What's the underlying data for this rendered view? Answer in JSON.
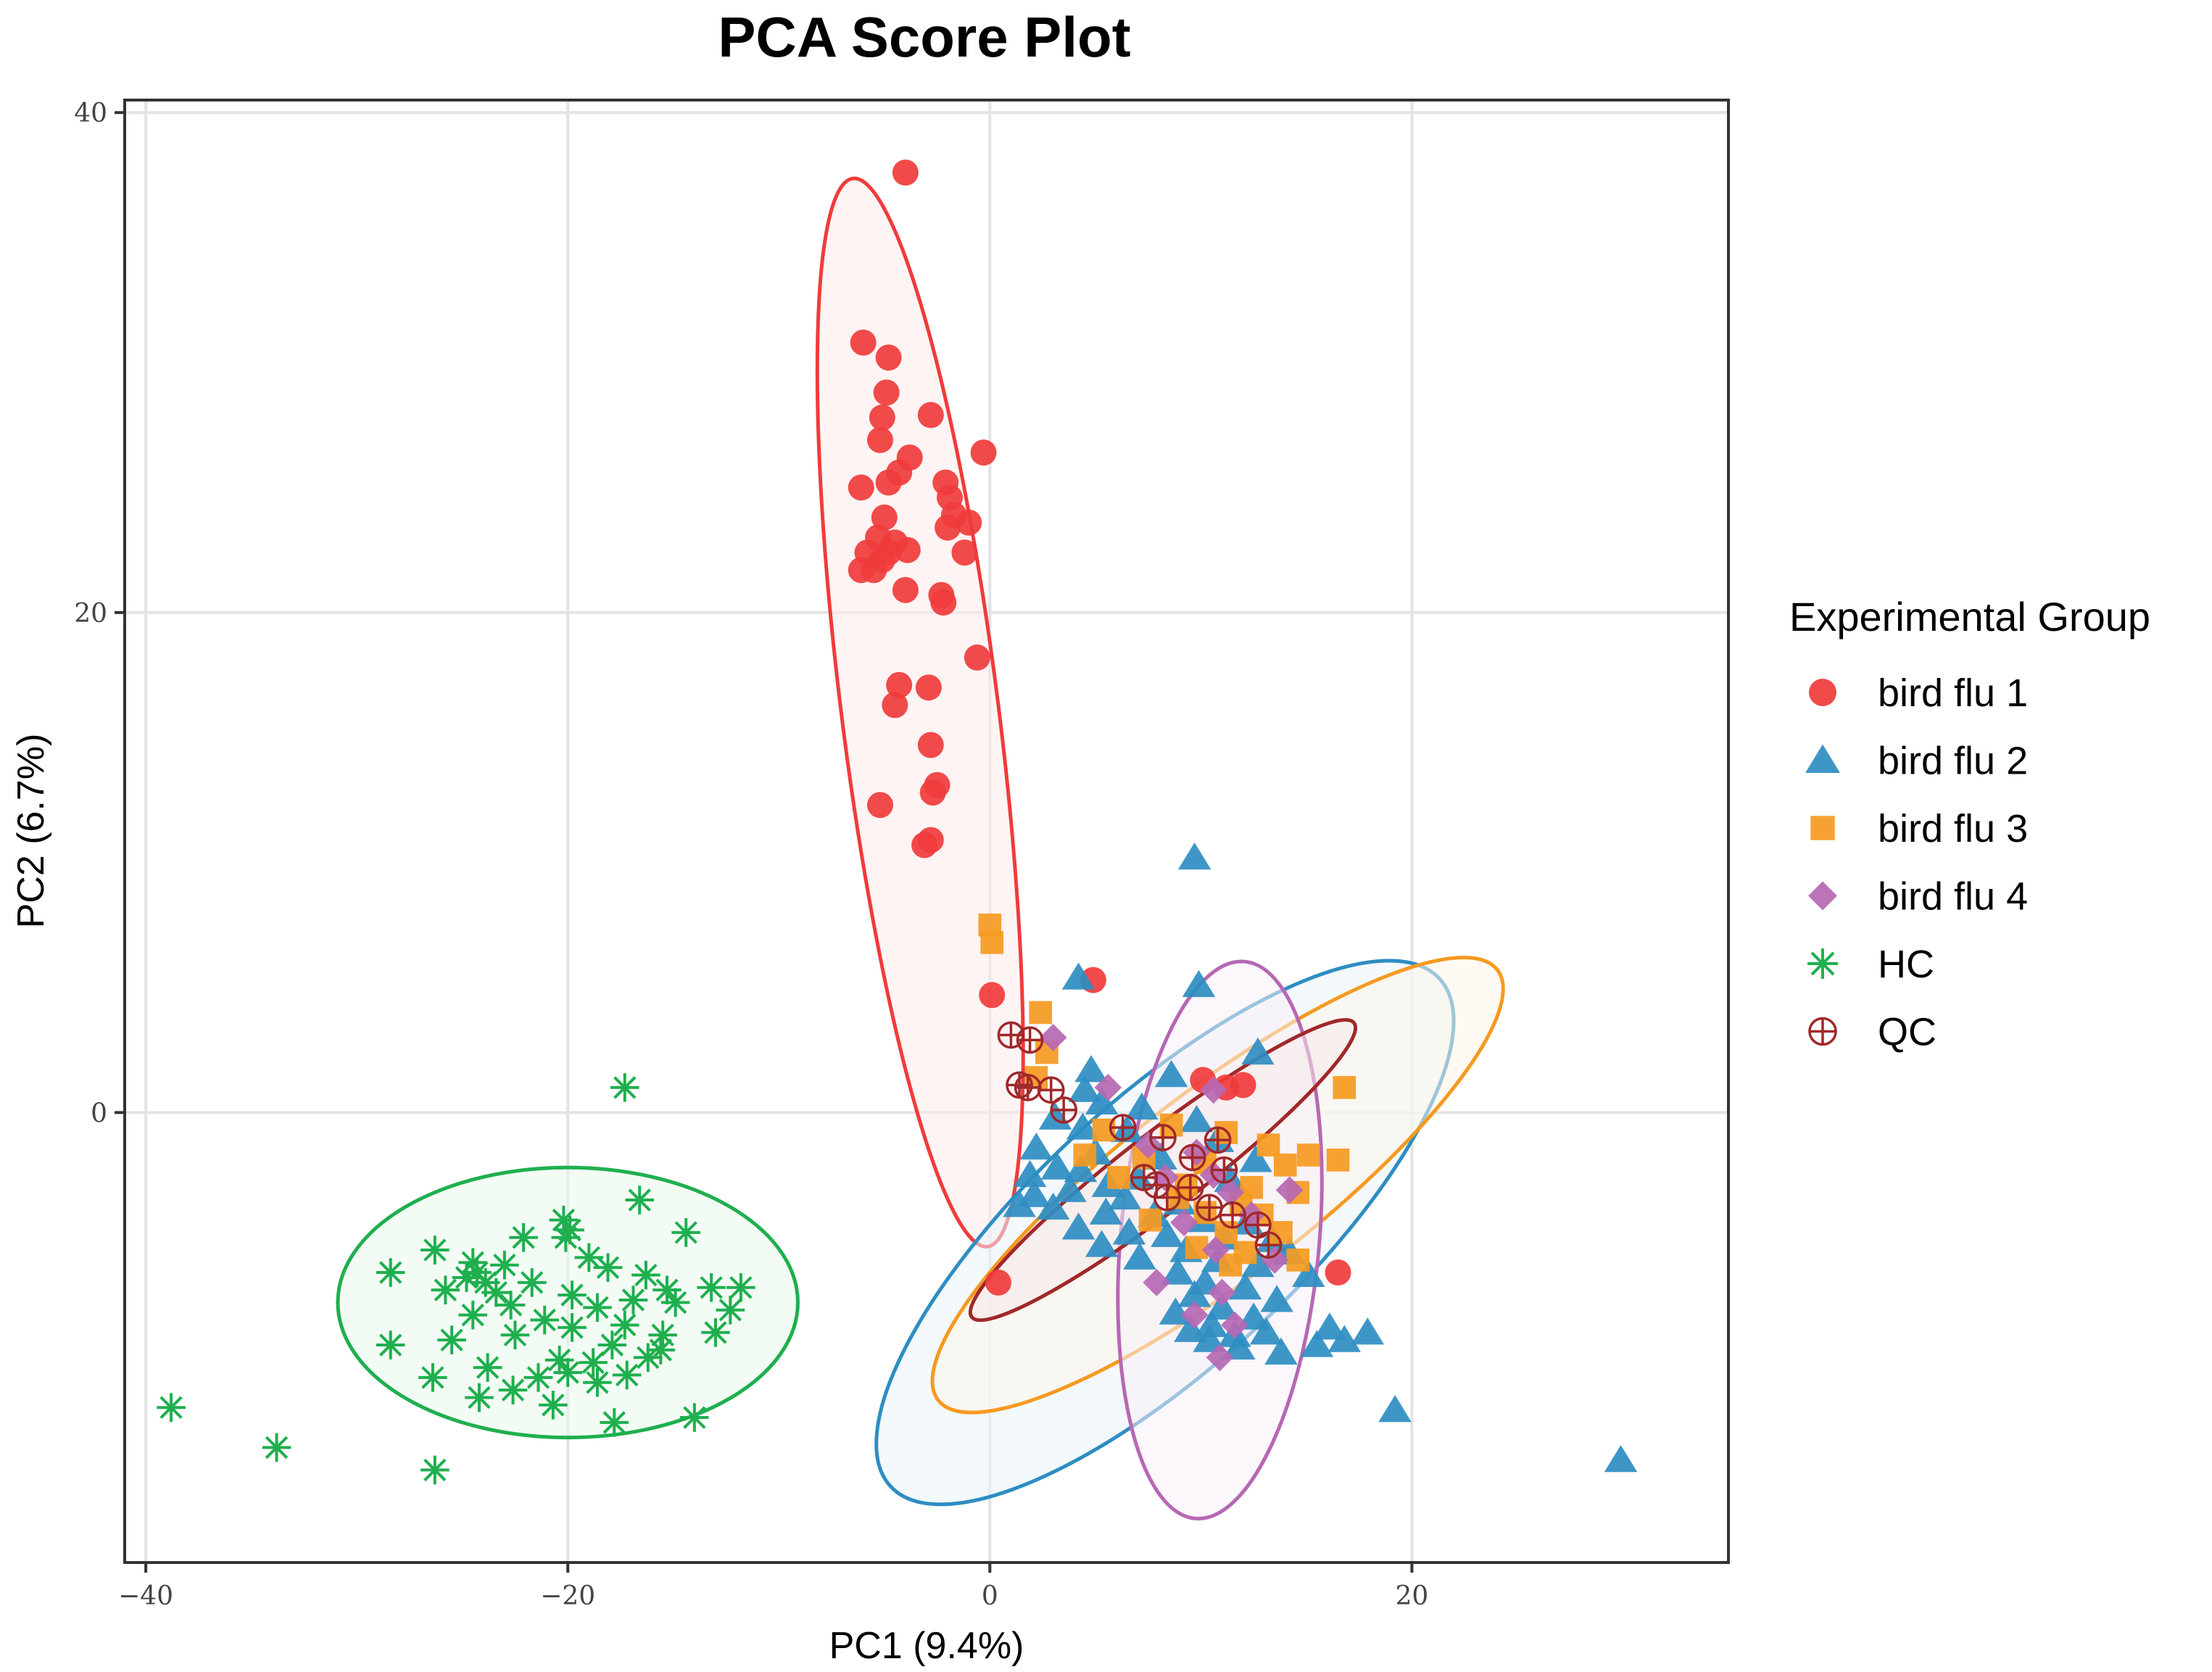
{
  "chart_data": {
    "type": "scatter",
    "title": "PCA Score Plot",
    "xlabel": "PC1 (9.4%)",
    "ylabel": "PC2 (6.7%)",
    "xlim": [
      -41,
      35
    ],
    "ylim": [
      -18,
      40.5
    ],
    "x_ticks": [
      -40,
      -20,
      0,
      20
    ],
    "x_tick_labels": [
      "−40",
      "−20",
      "0",
      "20"
    ],
    "y_ticks": [
      0,
      20,
      40
    ],
    "y_tick_labels": [
      "0",
      "20",
      "40"
    ],
    "grid": true,
    "legend": {
      "title": "Experimental Group",
      "position": "right",
      "entries": [
        "bird flu 1",
        "bird flu 2",
        "bird flu 3",
        "bird flu 4",
        "HC",
        "QC"
      ]
    },
    "series": [
      {
        "name": "bird flu 1",
        "marker": "circle",
        "color": "#F03B3B",
        "ellipse": {
          "cx": -3.3,
          "cy": 16.0,
          "rx": 21.6,
          "ry": 3.7,
          "angle": -81.5
        },
        "points": [
          [
            -4,
            37.6
          ],
          [
            -6,
            30.8
          ],
          [
            -4.8,
            30.2
          ],
          [
            -4.9,
            28.8
          ],
          [
            -5.1,
            27.8
          ],
          [
            -2.8,
            27.9
          ],
          [
            -5.2,
            26.9
          ],
          [
            -0.3,
            26.4
          ],
          [
            -3.8,
            26.2
          ],
          [
            -4.3,
            25.6
          ],
          [
            -6.1,
            25.0
          ],
          [
            -4.8,
            25.2
          ],
          [
            -2.1,
            25.2
          ],
          [
            -1.9,
            24.6
          ],
          [
            -1.7,
            23.9
          ],
          [
            -5.0,
            23.8
          ],
          [
            -1.0,
            23.6
          ],
          [
            -2.0,
            23.4
          ],
          [
            -5.3,
            23.0
          ],
          [
            -4.5,
            22.8
          ],
          [
            -5.8,
            22.4
          ],
          [
            -4.8,
            22.4
          ],
          [
            -3.9,
            22.5
          ],
          [
            -1.2,
            22.4
          ],
          [
            -5.1,
            22.1
          ],
          [
            -5.5,
            21.7
          ],
          [
            -6.1,
            21.7
          ],
          [
            -4.0,
            20.9
          ],
          [
            -2.3,
            20.7
          ],
          [
            -2.2,
            20.4
          ],
          [
            -0.6,
            18.2
          ],
          [
            -4.3,
            17.1
          ],
          [
            -2.9,
            17.0
          ],
          [
            -4.5,
            16.3
          ],
          [
            -2.8,
            14.7
          ],
          [
            -2.5,
            13.1
          ],
          [
            -2.7,
            12.8
          ],
          [
            -5.2,
            12.3
          ],
          [
            -2.8,
            10.9
          ],
          [
            -3.1,
            10.7
          ],
          [
            0.1,
            4.7
          ],
          [
            4.9,
            5.3
          ],
          [
            10.1,
            1.3
          ],
          [
            11.2,
            1.0
          ],
          [
            12.0,
            1.1
          ],
          [
            16.5,
            -6.4
          ],
          [
            0.4,
            -6.8
          ]
        ]
      },
      {
        "name": "bird flu 2",
        "marker": "triangle",
        "color": "#2E8DC2",
        "ellipse": {
          "cx": 8.3,
          "cy": -4.8,
          "rx": 16.5,
          "ry": 5.6,
          "angle": 38
        },
        "points": [
          [
            9.7,
            10.2
          ],
          [
            9.9,
            5.1
          ],
          [
            4.2,
            5.4
          ],
          [
            12.7,
            2.4
          ],
          [
            4.8,
            1.7
          ],
          [
            8.6,
            1.5
          ],
          [
            4.5,
            0.9
          ],
          [
            5.3,
            0.4
          ],
          [
            7.2,
            0.2
          ],
          [
            3.1,
            -0.2
          ],
          [
            9.8,
            -0.3
          ],
          [
            4.4,
            -0.6
          ],
          [
            6.5,
            -0.7
          ],
          [
            10.8,
            -1.1
          ],
          [
            2.2,
            -1.4
          ],
          [
            5.0,
            -1.6
          ],
          [
            8.1,
            -1.8
          ],
          [
            12.6,
            -1.9
          ],
          [
            3.2,
            -2.2
          ],
          [
            4.3,
            -2.3
          ],
          [
            1.9,
            -2.5
          ],
          [
            7.0,
            -2.6
          ],
          [
            11.4,
            -2.7
          ],
          [
            5.6,
            -2.9
          ],
          [
            3.8,
            -3.1
          ],
          [
            2.1,
            -3.3
          ],
          [
            6.4,
            -3.4
          ],
          [
            9.0,
            -3.6
          ],
          [
            1.4,
            -3.7
          ],
          [
            3.0,
            -3.8
          ],
          [
            5.5,
            -4.0
          ],
          [
            7.8,
            -4.1
          ],
          [
            10.1,
            -4.3
          ],
          [
            12.2,
            -4.4
          ],
          [
            4.2,
            -4.6
          ],
          [
            6.6,
            -4.8
          ],
          [
            8.4,
            -4.9
          ],
          [
            11.1,
            -5.0
          ],
          [
            13.4,
            -5.1
          ],
          [
            5.3,
            -5.3
          ],
          [
            9.3,
            -5.5
          ],
          [
            14.2,
            -5.6
          ],
          [
            7.1,
            -5.8
          ],
          [
            10.8,
            -5.9
          ],
          [
            12.7,
            -6.1
          ],
          [
            8.9,
            -6.4
          ],
          [
            15.1,
            -6.5
          ],
          [
            10.2,
            -6.8
          ],
          [
            12.1,
            -7.0
          ],
          [
            9.7,
            -7.3
          ],
          [
            13.6,
            -7.5
          ],
          [
            11.0,
            -7.8
          ],
          [
            8.8,
            -8.0
          ],
          [
            12.5,
            -8.2
          ],
          [
            10.5,
            -8.5
          ],
          [
            9.5,
            -8.7
          ],
          [
            11.6,
            -8.9
          ],
          [
            13.1,
            -8.8
          ],
          [
            16.1,
            -8.6
          ],
          [
            17.9,
            -8.8
          ],
          [
            10.4,
            -9.1
          ],
          [
            15.5,
            -9.3
          ],
          [
            11.8,
            -9.4
          ],
          [
            13.8,
            -9.6
          ],
          [
            16.8,
            -9.1
          ],
          [
            19.2,
            -11.9
          ],
          [
            29.9,
            -13.9
          ]
        ]
      },
      {
        "name": "bird flu 3",
        "marker": "square",
        "color": "#F59A21",
        "ellipse": {
          "cx": 10.8,
          "cy": -2.9,
          "rx": 15.8,
          "ry": 3.9,
          "angle": 33
        },
        "points": [
          [
            0,
            7.5
          ],
          [
            0.1,
            6.8
          ],
          [
            2.4,
            4.0
          ],
          [
            2.7,
            2.4
          ],
          [
            16.8,
            1.0
          ],
          [
            2.2,
            1.4
          ],
          [
            5.4,
            -0.7
          ],
          [
            8.6,
            -0.5
          ],
          [
            11.2,
            -0.8
          ],
          [
            13.2,
            -1.3
          ],
          [
            15.1,
            -1.7
          ],
          [
            16.5,
            -1.9
          ],
          [
            4.5,
            -1.7
          ],
          [
            7.3,
            -1.8
          ],
          [
            10.2,
            -2.0
          ],
          [
            14.0,
            -2.1
          ],
          [
            6.1,
            -2.6
          ],
          [
            9.3,
            -2.9
          ],
          [
            12.4,
            -3.0
          ],
          [
            8.9,
            -3.4
          ],
          [
            11.9,
            -3.6
          ],
          [
            14.6,
            -3.2
          ],
          [
            10.2,
            -4.0
          ],
          [
            12.9,
            -4.1
          ],
          [
            7.6,
            -4.3
          ],
          [
            11.2,
            -4.8
          ],
          [
            13.8,
            -4.8
          ],
          [
            9.8,
            -5.4
          ],
          [
            12.1,
            -5.6
          ],
          [
            14.6,
            -5.9
          ],
          [
            11.4,
            -6.1
          ]
        ]
      },
      {
        "name": "bird flu 4",
        "marker": "diamond",
        "color": "#B668B3",
        "ellipse": {
          "cx": 10.9,
          "cy": -5.1,
          "rx": 11.2,
          "ry": 4.7,
          "angle": 84
        },
        "points": [
          [
            3.0,
            3.0
          ],
          [
            5.6,
            1.0
          ],
          [
            10.6,
            0.9
          ],
          [
            7.5,
            -1.3
          ],
          [
            9.8,
            -1.6
          ],
          [
            10.6,
            -2.5
          ],
          [
            8.3,
            -2.6
          ],
          [
            11.4,
            -3.2
          ],
          [
            14.2,
            -3.1
          ],
          [
            12.4,
            -4.1
          ],
          [
            9.2,
            -4.4
          ],
          [
            10.7,
            -5.5
          ],
          [
            13.5,
            -5.9
          ],
          [
            7.9,
            -6.8
          ],
          [
            11.0,
            -7.2
          ],
          [
            9.7,
            -8.1
          ],
          [
            11.6,
            -8.5
          ],
          [
            10.9,
            -9.8
          ]
        ]
      },
      {
        "name": "HC",
        "marker": "asterisk",
        "color": "#1FAF4E",
        "ellipse": {
          "cx": -20.0,
          "cy": -7.6,
          "rx": 10.9,
          "ry": 5.4,
          "angle": 0
        },
        "points": [
          [
            -17.3,
            1.0
          ],
          [
            -16.6,
            -3.5
          ],
          [
            -20.2,
            -4.3
          ],
          [
            -19.9,
            -4.7
          ],
          [
            -20.1,
            -5.0
          ],
          [
            -14.4,
            -4.8
          ],
          [
            -22.1,
            -5.0
          ],
          [
            -26.3,
            -5.5
          ],
          [
            -19.0,
            -5.8
          ],
          [
            -24.5,
            -6.0
          ],
          [
            -23.0,
            -6.1
          ],
          [
            -24.3,
            -6.4
          ],
          [
            -18.1,
            -6.2
          ],
          [
            -28.4,
            -6.4
          ],
          [
            -24.8,
            -6.6
          ],
          [
            -23.9,
            -6.8
          ],
          [
            -21.7,
            -6.8
          ],
          [
            -16.3,
            -6.5
          ],
          [
            -25.8,
            -7.1
          ],
          [
            -23.4,
            -7.2
          ],
          [
            -19.8,
            -7.3
          ],
          [
            -15.3,
            -7.1
          ],
          [
            -13.2,
            -7.0
          ],
          [
            -11.8,
            -7.0
          ],
          [
            -22.7,
            -7.7
          ],
          [
            -18.6,
            -7.8
          ],
          [
            -16.9,
            -7.5
          ],
          [
            -14.9,
            -7.6
          ],
          [
            -12.3,
            -7.9
          ],
          [
            -24.5,
            -8.1
          ],
          [
            -21.1,
            -8.3
          ],
          [
            -17.3,
            -8.5
          ],
          [
            -19.8,
            -8.6
          ],
          [
            -15.5,
            -8.9
          ],
          [
            -22.5,
            -8.9
          ],
          [
            -25.5,
            -9.1
          ],
          [
            -13.0,
            -8.8
          ],
          [
            -17.9,
            -9.3
          ],
          [
            -15.6,
            -9.5
          ],
          [
            -28.4,
            -9.3
          ],
          [
            -20.4,
            -9.9
          ],
          [
            -18.8,
            -10.0
          ],
          [
            -16.2,
            -9.8
          ],
          [
            -20.0,
            -10.4
          ],
          [
            -23.8,
            -10.2
          ],
          [
            -26.4,
            -10.6
          ],
          [
            -21.4,
            -10.6
          ],
          [
            -18.6,
            -10.8
          ],
          [
            -22.6,
            -11.1
          ],
          [
            -24.2,
            -11.4
          ],
          [
            -17.2,
            -10.5
          ],
          [
            -20.7,
            -11.7
          ],
          [
            -14.0,
            -12.2
          ],
          [
            -17.8,
            -12.4
          ],
          [
            -38.8,
            -11.8
          ],
          [
            -33.8,
            -13.4
          ],
          [
            -26.3,
            -14.3
          ]
        ]
      },
      {
        "name": "QC",
        "marker": "circle-plus",
        "color": "#A0282A",
        "ellipse": {
          "cx": 8.2,
          "cy": -2.3,
          "rx": 10.8,
          "ry": 1.6,
          "angle": 33
        },
        "points": [
          [
            1.0,
            3.1
          ],
          [
            1.9,
            2.9
          ],
          [
            1.8,
            1.0
          ],
          [
            1.4,
            1.1
          ],
          [
            2.9,
            0.9
          ],
          [
            3.5,
            0.1
          ],
          [
            6.3,
            -0.6
          ],
          [
            8.2,
            -1.0
          ],
          [
            10.8,
            -1.1
          ],
          [
            9.6,
            -1.8
          ],
          [
            11.1,
            -2.3
          ],
          [
            7.3,
            -2.6
          ],
          [
            7.9,
            -2.9
          ],
          [
            9.5,
            -3.0
          ],
          [
            8.4,
            -3.4
          ],
          [
            10.4,
            -3.8
          ],
          [
            11.5,
            -4.1
          ],
          [
            12.7,
            -4.5
          ],
          [
            13.2,
            -5.3
          ]
        ]
      }
    ]
  }
}
